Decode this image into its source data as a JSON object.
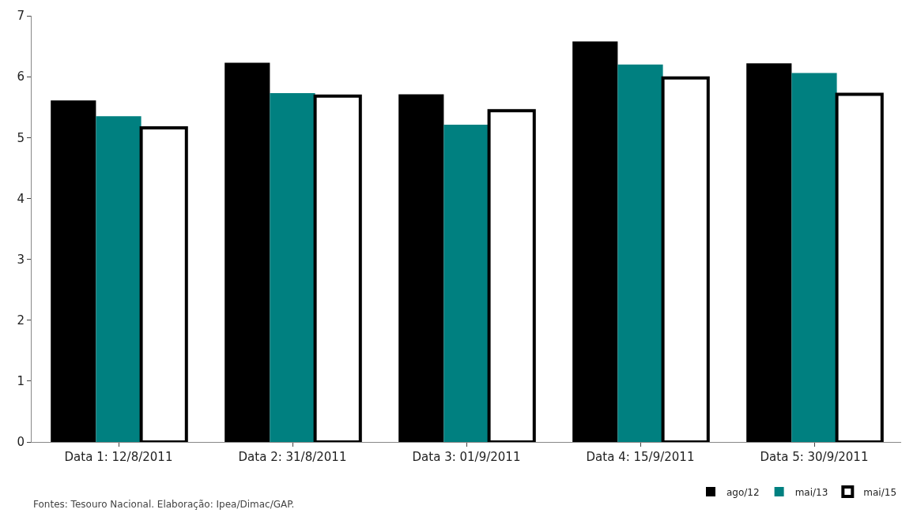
{
  "chart_data": {
    "type": "bar",
    "categories": [
      "Data 1: 12/8/2011",
      "Data 2: 31/8/2011",
      "Data 3: 01/9/2011",
      "Data 4: 15/9/2011",
      "Data 5: 30/9/2011"
    ],
    "series": [
      {
        "name": "ago/12",
        "color": "#000000",
        "values": [
          5.61,
          6.23,
          5.71,
          6.58,
          6.22
        ]
      },
      {
        "name": "mai/13",
        "color": "#008080",
        "values": [
          5.35,
          5.73,
          5.21,
          6.2,
          6.06
        ]
      },
      {
        "name": "mai/15",
        "color": "#ffffff",
        "values": [
          5.16,
          5.68,
          5.44,
          5.98,
          5.71
        ]
      }
    ],
    "ylim": [
      0,
      7
    ],
    "yticks": [
      0,
      1,
      2,
      3,
      4,
      5,
      6,
      7
    ],
    "legend": "bottom right",
    "annotations": [
      "Fontes: Tesouro Nacional. Elaboração: Ipea/Dimac/GAP."
    ]
  }
}
